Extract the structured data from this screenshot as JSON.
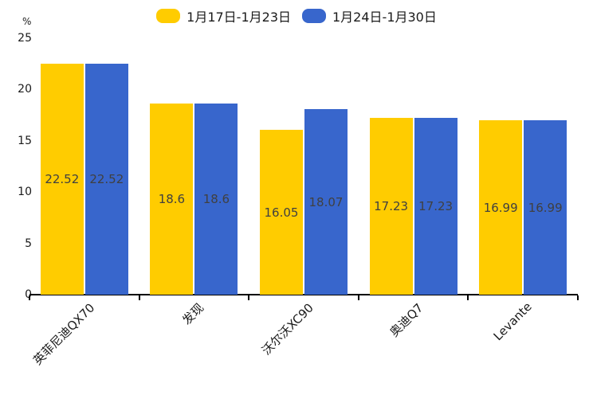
{
  "chart_data": {
    "type": "bar",
    "title": "",
    "categories": [
      "英菲尼迪QX70",
      "发现",
      "沃尔沃XC90",
      "奥迪Q7",
      "Levante"
    ],
    "series": [
      {
        "name": "1月17日-1月23日",
        "color": "#FFCC00",
        "values": [
          22.52,
          18.6,
          16.05,
          17.23,
          16.99
        ]
      },
      {
        "name": "1月24日-1月30日",
        "color": "#3866CC",
        "values": [
          22.52,
          18.6,
          18.07,
          17.23,
          16.99
        ]
      }
    ],
    "ylabel": "%",
    "yticks": [
      0,
      5,
      10,
      15,
      20,
      25
    ],
    "ylim": [
      0,
      25
    ],
    "legend_position": "top",
    "grid": false,
    "bar_labels": true,
    "colors": {
      "axis": "#000000",
      "tick_text": "#1a1a1a",
      "bar_label_text": "#404040",
      "background": "#ffffff"
    }
  }
}
